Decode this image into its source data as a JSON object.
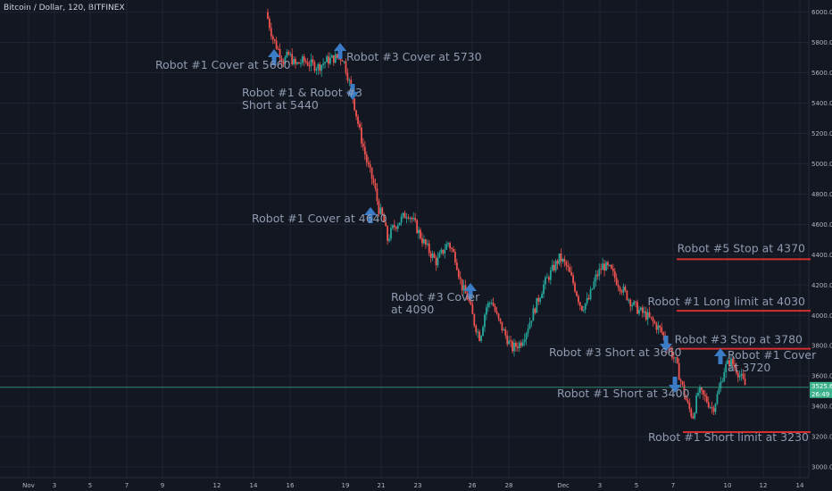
{
  "header": {
    "title": "Bitcoin / Dollar, 120, BITFINEX"
  },
  "colors": {
    "bg": "#131722",
    "grid": "#1f2433",
    "up": "#26a69a",
    "down": "#ef5350",
    "arrow": "#3a7cc6",
    "red_line": "#d32f2f",
    "price_line": "#3bb28b",
    "text": "#8f9bb0"
  },
  "price_tag": {
    "value": "3525.6",
    "sub": "26:49"
  },
  "chart_data": {
    "type": "candlestick",
    "y_ticks": [
      "6000.0",
      "5800.0",
      "5600.0",
      "5400.0",
      "5200.0",
      "5000.0",
      "4800.0",
      "4600.0",
      "4400.0",
      "4200.0",
      "4000.0",
      "3800.0",
      "3600.0",
      "3400.0",
      "3200.0",
      "3000.0"
    ],
    "x_ticks": [
      "Nov",
      "3",
      "5",
      "7",
      "9",
      "12",
      "14",
      "16",
      "19",
      "21",
      "23",
      "26",
      "28",
      "Dec",
      "3",
      "5",
      "7",
      "10",
      "12",
      "14"
    ],
    "ylim": [
      2930,
      6080
    ],
    "current_price": 3525.6,
    "close_path": [
      [
        0.0,
        6000
      ],
      [
        0.5,
        5820
      ],
      [
        0.8,
        5760
      ],
      [
        1.2,
        5680
      ],
      [
        1.6,
        5720
      ],
      [
        2.0,
        5650
      ],
      [
        2.6,
        5680
      ],
      [
        3.0,
        5660
      ],
      [
        3.6,
        5640
      ],
      [
        4.2,
        5680
      ],
      [
        4.8,
        5700
      ],
      [
        5.3,
        5700
      ],
      [
        5.6,
        5600
      ],
      [
        6.0,
        5440
      ],
      [
        6.5,
        5200
      ],
      [
        7.0,
        5000
      ],
      [
        7.5,
        4850
      ],
      [
        7.8,
        4700
      ],
      [
        8.1,
        4640
      ],
      [
        8.4,
        4500
      ],
      [
        8.8,
        4580
      ],
      [
        9.2,
        4620
      ],
      [
        9.8,
        4680
      ],
      [
        10.3,
        4600
      ],
      [
        10.8,
        4500
      ],
      [
        11.3,
        4420
      ],
      [
        11.8,
        4350
      ],
      [
        12.2,
        4420
      ],
      [
        12.6,
        4480
      ],
      [
        13.1,
        4380
      ],
      [
        13.5,
        4200
      ],
      [
        14.0,
        4100
      ],
      [
        14.4,
        3950
      ],
      [
        14.8,
        3850
      ],
      [
        15.2,
        4050
      ],
      [
        15.6,
        4100
      ],
      [
        16.0,
        3980
      ],
      [
        16.6,
        3860
      ],
      [
        17.0,
        3780
      ],
      [
        17.6,
        3820
      ],
      [
        18.0,
        3900
      ],
      [
        18.6,
        4050
      ],
      [
        19.2,
        4200
      ],
      [
        19.8,
        4300
      ],
      [
        20.3,
        4380
      ],
      [
        20.8,
        4320
      ],
      [
        21.3,
        4200
      ],
      [
        21.8,
        4050
      ],
      [
        22.3,
        4100
      ],
      [
        22.8,
        4250
      ],
      [
        23.3,
        4330
      ],
      [
        23.8,
        4300
      ],
      [
        24.3,
        4220
      ],
      [
        24.8,
        4150
      ],
      [
        25.3,
        4080
      ],
      [
        25.8,
        4030
      ],
      [
        26.3,
        4000
      ],
      [
        26.8,
        3950
      ],
      [
        27.3,
        3900
      ],
      [
        27.8,
        3800
      ],
      [
        28.3,
        3700
      ],
      [
        28.7,
        3560
      ],
      [
        29.1,
        3420
      ],
      [
        29.5,
        3330
      ],
      [
        29.9,
        3500
      ],
      [
        30.4,
        3450
      ],
      [
        30.9,
        3380
      ],
      [
        31.3,
        3500
      ],
      [
        31.7,
        3650
      ],
      [
        32.1,
        3700
      ],
      [
        32.5,
        3650
      ],
      [
        32.9,
        3580
      ],
      [
        33.2,
        3525
      ]
    ],
    "levels": [
      {
        "label": "Robot #5 Stop at 4370",
        "value": 4370
      },
      {
        "label": "Robot #1 Long limit at 4030",
        "value": 4030
      },
      {
        "label": "Robot #3 Stop at 3780",
        "value": 3780
      },
      {
        "label": "Robot #1 Short limit at 3230",
        "value": 3230
      }
    ],
    "annotations": [
      {
        "lines": [
          "Robot #1 Cover at 5660"
        ],
        "dir": "up"
      },
      {
        "lines": [
          "Robot #3 Cover at 5730"
        ],
        "dir": "up"
      },
      {
        "lines": [
          "Robot #1 & Robot #3",
          "Short at 5440"
        ],
        "dir": "down"
      },
      {
        "lines": [
          "Robot #1 Cover at 4640"
        ],
        "dir": "up"
      },
      {
        "lines": [
          "Robot #3 Cover",
          "at 4090"
        ],
        "dir": "up"
      },
      {
        "lines": [
          "Robot #3 Short at 3660"
        ],
        "dir": "down"
      },
      {
        "lines": [
          "Robot #1 Short at 3400"
        ],
        "dir": "down"
      },
      {
        "lines": [
          "Robot #1 Cover",
          "at 3720"
        ],
        "dir": "up"
      }
    ]
  }
}
